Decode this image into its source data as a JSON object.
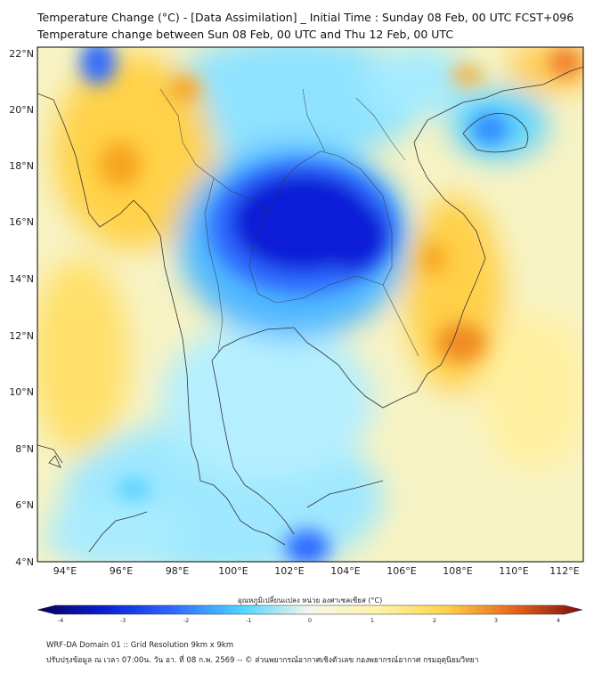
{
  "header": {
    "title_line1": "Temperature Change (°C) - [Data Assimilation] _ Initial Time : Sunday 08 Feb, 00 UTC FCST+096",
    "title_line2": "Temperature change between Sun 08 Feb, 00 UTC and Thu 12 Feb, 00 UTC"
  },
  "map": {
    "lat_labels": [
      "22°N",
      "20°N",
      "18°N",
      "16°N",
      "14°N",
      "12°N",
      "10°N",
      "8°N",
      "6°N",
      "4°N"
    ],
    "lon_labels": [
      "94°E",
      "96°E",
      "98°E",
      "100°E",
      "102°E",
      "104°E",
      "106°E",
      "108°E",
      "110°E",
      "112°E"
    ],
    "colors": {
      "deep_blue": "#0a1fd6",
      "blue": "#2e6bff",
      "cyan": "#4fd4ff",
      "light_cyan": "#a9ecff",
      "near_zero": "#f4f7e9",
      "pale_yellow": "#fff3a6",
      "yellow": "#ffd24a",
      "orange": "#f7a51f",
      "red_orange": "#e8641c"
    }
  },
  "colorbar": {
    "title": "อุณหภูมิเปลี่ยนแปลง หน่วย องศาเซลเซียส (°C)",
    "tick_labels": [
      "-4",
      "-3",
      "-2",
      "-1",
      "0",
      "1",
      "2",
      "3",
      "4"
    ],
    "colors": [
      "#08005a",
      "#0a1fd6",
      "#2e6bff",
      "#4fd4ff",
      "#f4f7e9",
      "#fff3a6",
      "#ffd24a",
      "#e8641c",
      "#7a0d0d"
    ]
  },
  "footer": {
    "line1": "WRF-DA Domain 01 :: Grid Resolution 9km x 9km",
    "line2": "ปรับปรุงข้อมูล ณ เวลา 07:00น. วัน อา. ที่ 08 ก.พ. 2569 -- © ส่วนพยากรณ์อากาศเชิงตัวเลข กองพยากรณ์อากาศ กรมอุตุนิยมวิทยา"
  }
}
